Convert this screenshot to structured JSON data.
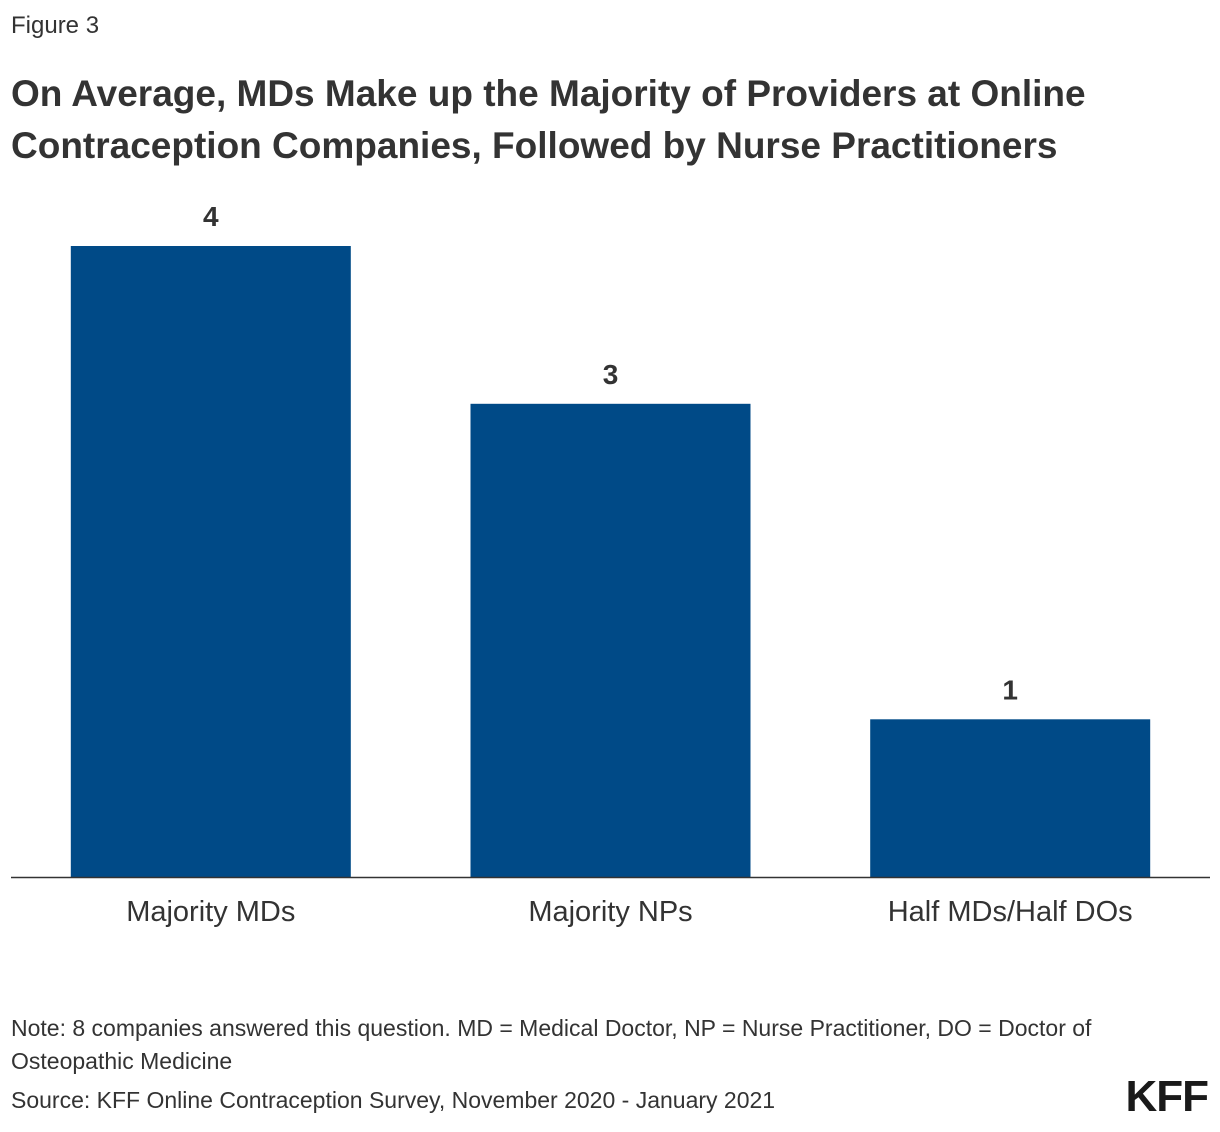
{
  "figure_label": "Figure 3",
  "chart_data": {
    "type": "bar",
    "title": "On Average, MDs Make up the Majority of Providers at Online Contraception Companies, Followed by Nurse Practitioners",
    "categories": [
      "Majority MDs",
      "Majority NPs",
      "Half MDs/Half DOs"
    ],
    "values": [
      4,
      3,
      1
    ],
    "data_labels": [
      "4",
      "3",
      "1"
    ],
    "xlabel": "",
    "ylabel": "",
    "ylim": [
      0,
      4
    ],
    "grid": false,
    "bar_color": "#004a87"
  },
  "note": "Note: 8 companies answered this question. MD = Medical Doctor, NP = Nurse Practitioner, DO = Doctor of Osteopathic Medicine",
  "source": "Source: KFF Online Contraception Survey, November 2020 - January 2021",
  "logo_text": "KFF",
  "colors": {
    "text": "#333333",
    "axis": "#333333"
  }
}
